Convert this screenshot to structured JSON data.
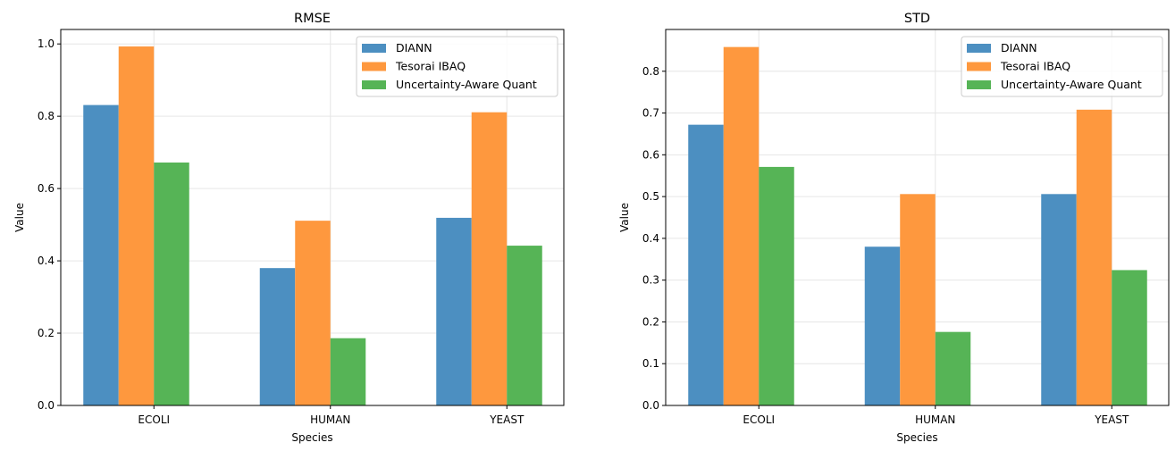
{
  "chart_data": [
    {
      "type": "bar",
      "title": "RMSE",
      "xlabel": "Species",
      "ylabel": "Value",
      "categories": [
        "ECOLI",
        "HUMAN",
        "YEAST"
      ],
      "ylim": [
        0,
        1.04
      ],
      "yticks": [
        0.0,
        0.2,
        0.4,
        0.6,
        0.8,
        1.0
      ],
      "ytick_labels": [
        "0.0",
        "0.2",
        "0.4",
        "0.6",
        "0.8",
        "1.0"
      ],
      "grid": true,
      "legend": "top-right",
      "series": [
        {
          "name": "DIANN",
          "color": "#4c8fc1",
          "values": [
            0.831,
            0.38,
            0.519
          ]
        },
        {
          "name": "Tesorai IBAQ",
          "color": "#fe983e",
          "values": [
            0.993,
            0.511,
            0.811
          ]
        },
        {
          "name": "Uncertainty-Aware Quant",
          "color": "#56b456",
          "values": [
            0.672,
            0.186,
            0.442
          ]
        }
      ]
    },
    {
      "type": "bar",
      "title": "STD",
      "xlabel": "Species",
      "ylabel": "Value",
      "categories": [
        "ECOLI",
        "HUMAN",
        "YEAST"
      ],
      "ylim": [
        0,
        0.9
      ],
      "yticks": [
        0.0,
        0.1,
        0.2,
        0.3,
        0.4,
        0.5,
        0.6,
        0.7,
        0.8
      ],
      "ytick_labels": [
        "0.0",
        "0.1",
        "0.2",
        "0.3",
        "0.4",
        "0.5",
        "0.6",
        "0.7",
        "0.8"
      ],
      "grid": true,
      "legend": "top-right",
      "series": [
        {
          "name": "DIANN",
          "color": "#4c8fc1",
          "values": [
            0.672,
            0.38,
            0.506
          ]
        },
        {
          "name": "Tesorai IBAQ",
          "color": "#fe983e",
          "values": [
            0.858,
            0.506,
            0.708
          ]
        },
        {
          "name": "Uncertainty-Aware Quant",
          "color": "#56b456",
          "values": [
            0.571,
            0.176,
            0.324
          ]
        }
      ]
    }
  ]
}
